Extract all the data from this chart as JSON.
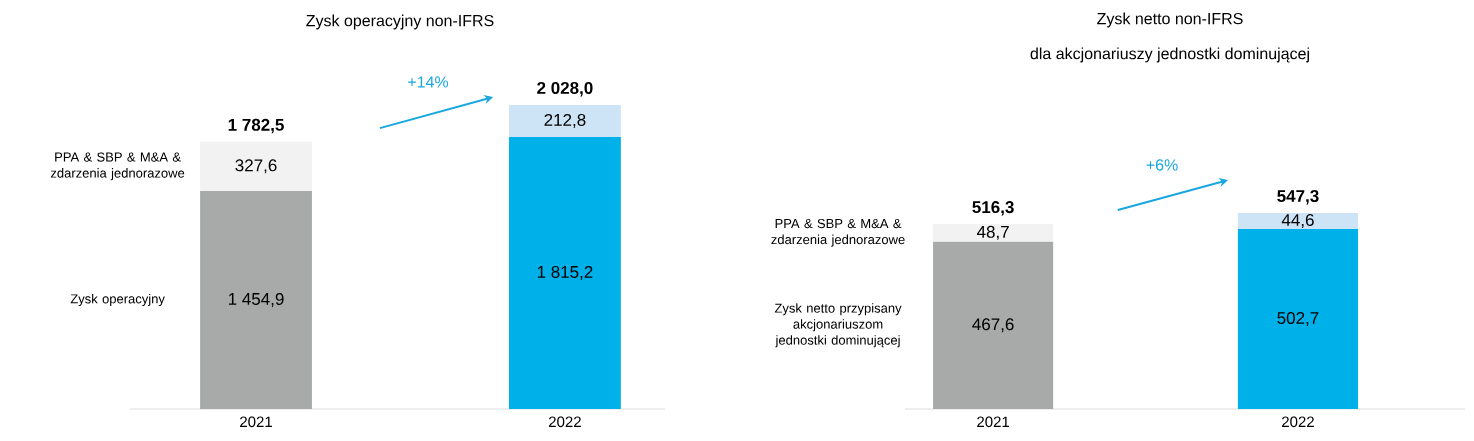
{
  "chart_data": [
    {
      "type": "bar",
      "stacked": true,
      "title": "Zysk operacyjny non-IFRS",
      "categories": [
        "2021",
        "2022"
      ],
      "series": [
        {
          "name": "Zysk operacyjny",
          "colors": [
            "#a7aaa9",
            "#00b0e8"
          ],
          "values": [
            1454.9,
            1815.2
          ],
          "value_labels": [
            "1 454,9",
            "1 815,2"
          ]
        },
        {
          "name": "PPA & SBP & M&A & zdarzenia jednorazowe",
          "colors": [
            "#f2f2f2",
            "#cce4f6"
          ],
          "values": [
            327.6,
            212.8
          ],
          "value_labels": [
            "327,6",
            "212,8"
          ]
        }
      ],
      "totals": [
        "1 782,5",
        "2 028,0"
      ],
      "annotations": [
        "+14%"
      ]
    },
    {
      "type": "bar",
      "stacked": true,
      "title": "Zysk netto non-IFRS",
      "subtitle": "dla akcjonariuszy jednostki dominującej",
      "categories": [
        "2021",
        "2022"
      ],
      "series": [
        {
          "name": "Zysk netto przypisany akcjonariuszom jednostki dominującej",
          "colors": [
            "#a7aaa9",
            "#00b0e8"
          ],
          "values": [
            467.6,
            502.7
          ],
          "value_labels": [
            "467,6",
            "502,7"
          ]
        },
        {
          "name": "PPA & SBP & M&A & zdarzenia jednorazowe",
          "colors": [
            "#f2f2f2",
            "#cce4f6"
          ],
          "values": [
            48.7,
            44.6
          ],
          "value_labels": [
            "48,7",
            "44,6"
          ]
        }
      ],
      "totals": [
        "516,3",
        "547,3"
      ],
      "annotations": [
        "+6%"
      ]
    }
  ]
}
